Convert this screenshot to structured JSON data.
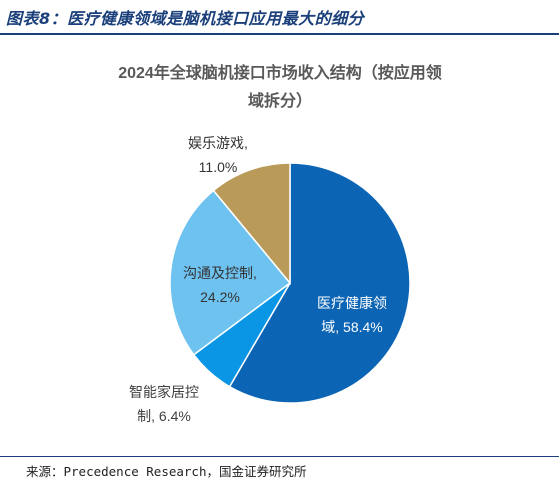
{
  "figure": {
    "title": "图表8：医疗健康领域是脑机接口应用最大的细分",
    "source": "来源：Precedence Research，国金证券研究所"
  },
  "chart_data": {
    "type": "pie",
    "title": "2024年全球脑机接口市场收入结构（按应用领域拆分）",
    "title_lines": [
      "2024年全球脑机接口市场收入结构（按应用领",
      "域拆分）"
    ],
    "slices": [
      {
        "label_lines": [
          "医疗健康领",
          "域, 58.4%"
        ],
        "category": "医疗健康领域",
        "value": 58.4,
        "color": "#0c64b4"
      },
      {
        "label_lines": [
          "智能家居控",
          "制, 6.4%"
        ],
        "category": "智能家居控制",
        "value": 6.4,
        "color": "#0a96e4"
      },
      {
        "label_lines": [
          "沟通及控制,",
          "24.2%"
        ],
        "category": "沟通及控制",
        "value": 24.2,
        "color": "#6ec2f0"
      },
      {
        "label_lines": [
          "娱乐游戏,",
          "11.0%"
        ],
        "category": "娱乐游戏",
        "value": 11.0,
        "color": "#b99a58"
      }
    ],
    "start_angle": "12 o'clock",
    "direction": "clockwise",
    "legend": "none"
  }
}
